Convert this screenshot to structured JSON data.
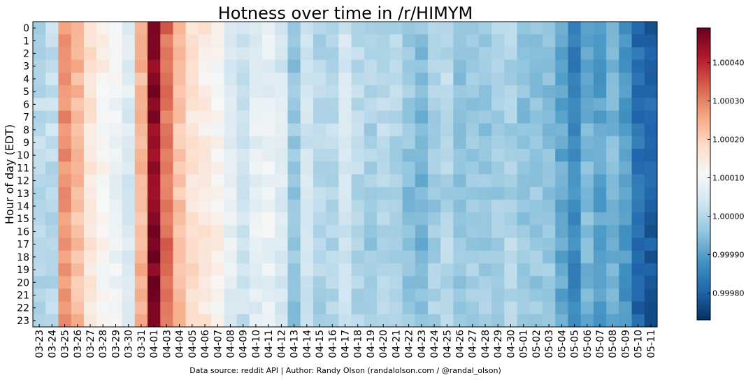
{
  "chart_data": {
    "type": "heatmap",
    "title": "Hotness over time in /r/HIMYM",
    "xlabel": "",
    "ylabel": "Hour of day (EDT)",
    "x_categories": [
      "03-23",
      "03-24",
      "03-25",
      "03-26",
      "03-27",
      "03-28",
      "03-29",
      "03-30",
      "03-31",
      "04-01",
      "04-03",
      "04-04",
      "04-05",
      "04-06",
      "04-07",
      "04-08",
      "04-09",
      "04-10",
      "04-11",
      "04-12",
      "04-13",
      "04-14",
      "04-15",
      "04-16",
      "04-17",
      "04-18",
      "04-19",
      "04-20",
      "04-21",
      "04-22",
      "04-23",
      "04-24",
      "04-25",
      "04-26",
      "04-27",
      "04-28",
      "04-29",
      "04-30",
      "05-01",
      "05-02",
      "05-03",
      "05-04",
      "05-05",
      "05-06",
      "05-07",
      "05-08",
      "05-09",
      "05-10",
      "05-11"
    ],
    "y_categories": [
      "0",
      "1",
      "2",
      "3",
      "4",
      "5",
      "6",
      "7",
      "8",
      "9",
      "10",
      "11",
      "12",
      "13",
      "14",
      "15",
      "16",
      "17",
      "18",
      "19",
      "20",
      "21",
      "22",
      "23"
    ],
    "colorbar": {
      "min": 0.99973,
      "max": 1.00049,
      "ticks": [
        "0.99980",
        "0.99990",
        "1.00000",
        "1.00010",
        "1.00020",
        "1.00030",
        "1.00040"
      ],
      "colormap": "RdBu_r"
    },
    "column_profile": [
      1.0,
      1.00001,
      1.00028,
      1.00023,
      1.00016,
      1.00012,
      1.00009,
      1.00006,
      1.00024,
      1.00046,
      1.00032,
      1.00022,
      1.00017,
      1.00015,
      1.00012,
      1.00006,
      1.00003,
      1.00007,
      1.00008,
      1.00005,
      0.99996,
      1.00003,
      1.0,
      1.0,
      1.00004,
      1.0,
      0.99998,
      1.0,
      0.99999,
      0.99996,
      0.99994,
      0.99998,
      1.0,
      0.99996,
      0.99997,
      0.99997,
      0.99998,
      0.99999,
      0.99996,
      0.99996,
      0.99996,
      0.99991,
      0.99986,
      0.99993,
      0.9999,
      0.99993,
      0.99989,
      0.99982,
      0.9998
    ]
  },
  "footer": "Data source: reddit API | Author: Randy Olson (randalolson.com / @randal_olson)"
}
